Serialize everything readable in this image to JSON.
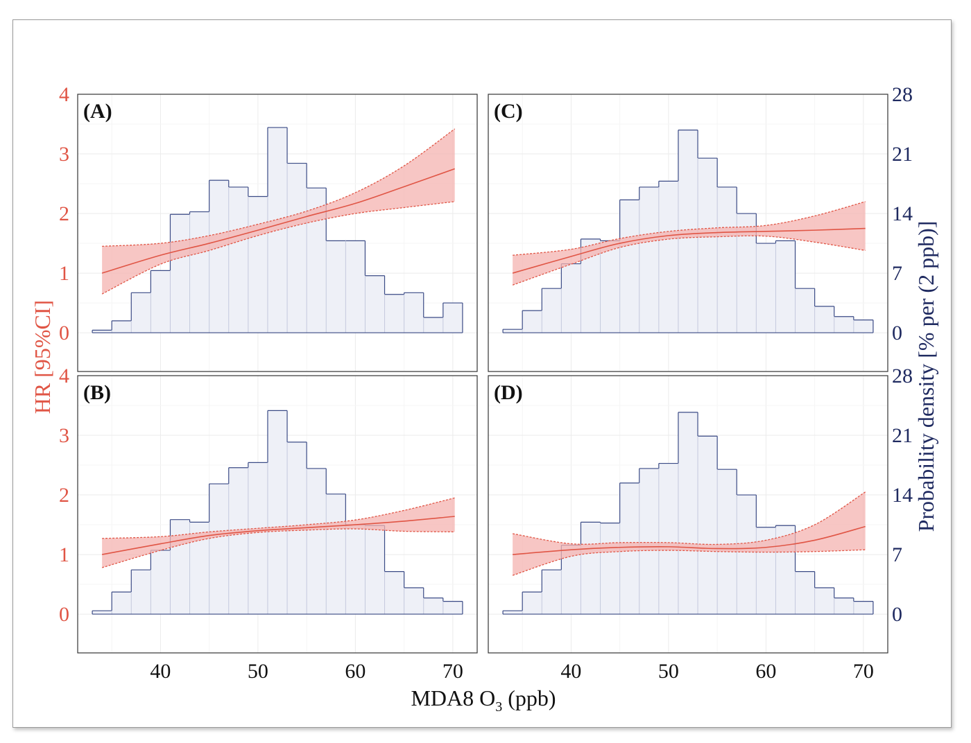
{
  "chart_data": {
    "type": "bar",
    "xlabel_main": "MDA8 O",
    "xlabel_sub": "3",
    "xlabel_unit": " (ppb)",
    "ylabel_left": "HR [95%CI]",
    "ylabel_right": "Probability density [% per (2 ppb)]",
    "xlim": [
      31.5,
      72.5
    ],
    "x_ticks": [
      40,
      50,
      60,
      70
    ],
    "ylim_left": [
      -0.65,
      4
    ],
    "y_ticks_left": [
      0,
      1,
      2,
      3,
      4
    ],
    "ylim_right": [
      -4.55,
      28
    ],
    "y_ticks_right": [
      0,
      7,
      14,
      21,
      28
    ],
    "bin_width": 2,
    "grid": true,
    "colors": {
      "hr_line": "#e05545",
      "ci_fill": "#f4b3b0",
      "bar_fill": "#eef0f7",
      "bar_edge_dark": "#3a4a85",
      "bar_edge_light": "#c4c9dd",
      "left_axis": "#e05545",
      "right_axis": "#1f2a60"
    },
    "panels": [
      {
        "label": "(A)",
        "bins": [
          33,
          35,
          37,
          39,
          41,
          43,
          45,
          47,
          49,
          51,
          53,
          55,
          57,
          59,
          61,
          63,
          65,
          67,
          69
        ],
        "density": [
          0.3,
          1.4,
          4.7,
          7.3,
          13.9,
          14.2,
          17.9,
          17.1,
          16.0,
          24.1,
          19.9,
          17.0,
          10.8,
          10.8,
          6.7,
          4.5,
          4.7,
          1.8,
          3.5
        ],
        "hr_curve": {
          "x": [
            34,
            40,
            45,
            50,
            55,
            60,
            65,
            70.2
          ],
          "y": [
            1.0,
            1.3,
            1.5,
            1.72,
            1.95,
            2.17,
            2.45,
            2.75
          ]
        },
        "ci_lower": {
          "x": [
            34,
            40,
            45,
            50,
            55,
            60,
            65,
            70.2
          ],
          "y": [
            0.65,
            1.15,
            1.38,
            1.63,
            1.84,
            2.0,
            2.1,
            2.2
          ]
        },
        "ci_upper": {
          "x": [
            34,
            40,
            45,
            50,
            55,
            60,
            65,
            70.2
          ],
          "y": [
            1.45,
            1.5,
            1.63,
            1.82,
            2.04,
            2.35,
            2.8,
            3.42
          ]
        }
      },
      {
        "label": "(B)",
        "bins": [
          33,
          35,
          37,
          39,
          41,
          43,
          45,
          47,
          49,
          51,
          53,
          55,
          57,
          59,
          61,
          63,
          65,
          67,
          69
        ],
        "density": [
          0.4,
          2.6,
          5.2,
          7.5,
          11.1,
          10.8,
          15.3,
          17.2,
          17.8,
          23.9,
          20.2,
          17.1,
          14.1,
          10.5,
          10.4,
          5.0,
          3.1,
          1.9,
          1.5
        ],
        "hr_curve": {
          "x": [
            34,
            40,
            45,
            50,
            55,
            60,
            65,
            70.2
          ],
          "y": [
            1.0,
            1.18,
            1.32,
            1.4,
            1.45,
            1.5,
            1.56,
            1.64
          ]
        },
        "ci_lower": {
          "x": [
            34,
            40,
            45,
            50,
            55,
            60,
            65,
            70.2
          ],
          "y": [
            0.78,
            1.07,
            1.27,
            1.37,
            1.41,
            1.43,
            1.39,
            1.38
          ]
        },
        "ci_upper": {
          "x": [
            34,
            40,
            45,
            50,
            55,
            60,
            65,
            70.2
          ],
          "y": [
            1.27,
            1.3,
            1.38,
            1.44,
            1.5,
            1.58,
            1.74,
            1.95
          ]
        }
      },
      {
        "label": "(C)",
        "bins": [
          33,
          35,
          37,
          39,
          41,
          43,
          45,
          47,
          49,
          51,
          53,
          55,
          57,
          59,
          61,
          63,
          65,
          67,
          69
        ],
        "density": [
          0.4,
          2.6,
          5.2,
          8.1,
          11.0,
          10.8,
          15.6,
          17.1,
          17.8,
          23.8,
          20.5,
          17.1,
          14.0,
          10.5,
          10.8,
          5.2,
          3.1,
          1.9,
          1.5
        ],
        "hr_curve": {
          "x": [
            34,
            40,
            45,
            50,
            55,
            60,
            65,
            70.2
          ],
          "y": [
            1.0,
            1.28,
            1.5,
            1.63,
            1.68,
            1.7,
            1.72,
            1.75
          ]
        },
        "ci_lower": {
          "x": [
            34,
            40,
            45,
            50,
            55,
            60,
            65,
            70.2
          ],
          "y": [
            0.8,
            1.15,
            1.43,
            1.57,
            1.61,
            1.62,
            1.52,
            1.38
          ]
        },
        "ci_upper": {
          "x": [
            34,
            40,
            45,
            50,
            55,
            60,
            65,
            70.2
          ],
          "y": [
            1.3,
            1.4,
            1.58,
            1.7,
            1.76,
            1.8,
            1.96,
            2.2
          ]
        }
      },
      {
        "label": "(D)",
        "bins": [
          33,
          35,
          37,
          39,
          41,
          43,
          45,
          47,
          49,
          51,
          53,
          55,
          57,
          59,
          61,
          63,
          65,
          67,
          69
        ],
        "density": [
          0.4,
          2.6,
          5.2,
          8.1,
          10.8,
          10.7,
          15.4,
          17.1,
          17.7,
          23.7,
          20.9,
          17.0,
          14.0,
          10.2,
          10.4,
          5.0,
          3.1,
          1.9,
          1.5
        ],
        "hr_curve": {
          "x": [
            34,
            40,
            45,
            50,
            55,
            60,
            65,
            70.2
          ],
          "y": [
            1.0,
            1.08,
            1.12,
            1.13,
            1.1,
            1.12,
            1.24,
            1.47
          ]
        },
        "ci_lower": {
          "x": [
            34,
            40,
            45,
            50,
            55,
            60,
            65,
            70.2
          ],
          "y": [
            0.65,
            0.97,
            1.05,
            1.07,
            1.05,
            1.04,
            1.05,
            1.08
          ]
        },
        "ci_upper": {
          "x": [
            34,
            40,
            45,
            50,
            55,
            60,
            65,
            70.2
          ],
          "y": [
            1.35,
            1.18,
            1.2,
            1.2,
            1.17,
            1.24,
            1.5,
            2.05
          ]
        }
      }
    ]
  }
}
